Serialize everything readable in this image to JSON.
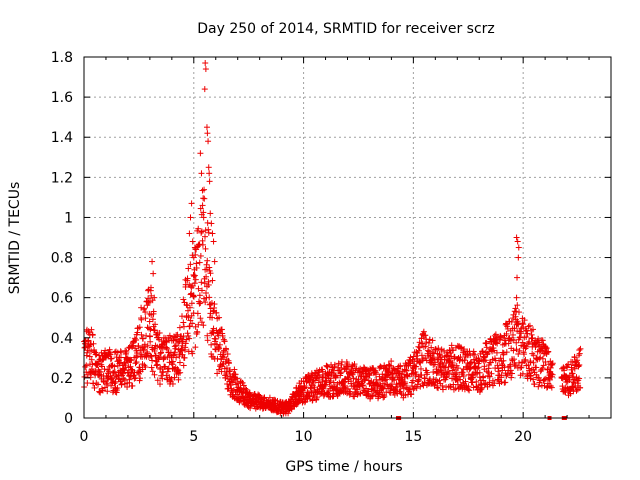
{
  "chart_data": {
    "type": "scatter",
    "title": "Day 250 of 2014, SRMTID for receiver scrz",
    "xlabel": "GPS time / hours",
    "ylabel": "SRMTID / TECUs",
    "xlim": [
      0,
      24
    ],
    "ylim": [
      0,
      1.8
    ],
    "xticks": [
      0,
      5,
      10,
      15,
      20
    ],
    "yticks": [
      0,
      0.2,
      0.4,
      0.6,
      0.8,
      1,
      1.2,
      1.4,
      1.6,
      1.8
    ],
    "xtick_labels": [
      "0",
      "5",
      "10",
      "15",
      "20"
    ],
    "ytick_labels": [
      "0",
      "0.2",
      "0.4",
      "0.6",
      "0.8",
      "1",
      "1.2",
      "1.4",
      "1.6",
      "1.8"
    ],
    "grid": true,
    "marker": "+",
    "color": "#ee0000",
    "envelope": [
      [
        0.0,
        0.28
      ],
      [
        0.3,
        0.33
      ],
      [
        0.6,
        0.22
      ],
      [
        1.0,
        0.24
      ],
      [
        1.5,
        0.23
      ],
      [
        2.0,
        0.24
      ],
      [
        2.5,
        0.32
      ],
      [
        2.8,
        0.4
      ],
      [
        3.0,
        0.48
      ],
      [
        3.2,
        0.38
      ],
      [
        3.5,
        0.28
      ],
      [
        4.0,
        0.3
      ],
      [
        4.3,
        0.33
      ],
      [
        4.6,
        0.48
      ],
      [
        5.0,
        0.6
      ],
      [
        5.3,
        0.72
      ],
      [
        5.5,
        0.85
      ],
      [
        5.8,
        0.5
      ],
      [
        6.0,
        0.42
      ],
      [
        6.3,
        0.3
      ],
      [
        6.6,
        0.2
      ],
      [
        7.0,
        0.15
      ],
      [
        7.5,
        0.09
      ],
      [
        8.0,
        0.08
      ],
      [
        8.5,
        0.07
      ],
      [
        9.0,
        0.05
      ],
      [
        9.3,
        0.05
      ],
      [
        9.6,
        0.1
      ],
      [
        10.0,
        0.14
      ],
      [
        10.5,
        0.16
      ],
      [
        11.0,
        0.18
      ],
      [
        11.5,
        0.19
      ],
      [
        12.0,
        0.2
      ],
      [
        12.5,
        0.18
      ],
      [
        13.0,
        0.17
      ],
      [
        13.5,
        0.18
      ],
      [
        14.0,
        0.2
      ],
      [
        14.5,
        0.18
      ],
      [
        15.0,
        0.22
      ],
      [
        15.5,
        0.3
      ],
      [
        16.0,
        0.26
      ],
      [
        16.5,
        0.25
      ],
      [
        17.0,
        0.26
      ],
      [
        17.5,
        0.24
      ],
      [
        18.0,
        0.23
      ],
      [
        18.5,
        0.28
      ],
      [
        19.0,
        0.3
      ],
      [
        19.5,
        0.36
      ],
      [
        19.8,
        0.4
      ],
      [
        20.0,
        0.35
      ],
      [
        20.3,
        0.34
      ],
      [
        20.6,
        0.28
      ],
      [
        21.0,
        0.28
      ],
      [
        21.3,
        0.22
      ],
      [
        21.6,
        0.18
      ],
      [
        22.0,
        0.18
      ],
      [
        22.3,
        0.22
      ],
      [
        22.6,
        0.26
      ]
    ],
    "gaps": [
      [
        21.35,
        21.75
      ]
    ],
    "spikes": [
      [
        3.1,
        0.78
      ],
      [
        3.15,
        0.72
      ],
      [
        3.05,
        0.65
      ],
      [
        3.2,
        0.6
      ],
      [
        3.0,
        0.58
      ],
      [
        2.6,
        0.55
      ],
      [
        4.8,
        0.92
      ],
      [
        4.85,
        1.0
      ],
      [
        4.9,
        1.07
      ],
      [
        4.95,
        0.88
      ],
      [
        5.0,
        0.8
      ],
      [
        5.05,
        0.85
      ],
      [
        5.3,
        1.32
      ],
      [
        5.35,
        1.22
      ],
      [
        5.4,
        1.06
      ],
      [
        5.45,
        1.0
      ],
      [
        5.5,
        1.64
      ],
      [
        5.52,
        1.77
      ],
      [
        5.55,
        1.74
      ],
      [
        5.6,
        1.45
      ],
      [
        5.62,
        1.42
      ],
      [
        5.65,
        1.38
      ],
      [
        5.68,
        1.25
      ],
      [
        5.7,
        1.22
      ],
      [
        5.72,
        1.18
      ],
      [
        5.75,
        1.02
      ],
      [
        5.8,
        0.97
      ],
      [
        5.85,
        0.92
      ],
      [
        5.9,
        0.88
      ],
      [
        5.95,
        0.78
      ],
      [
        19.7,
        0.9
      ],
      [
        19.75,
        0.88
      ],
      [
        19.8,
        0.85
      ],
      [
        19.78,
        0.8
      ],
      [
        19.72,
        0.7
      ],
      [
        19.7,
        0.6
      ]
    ],
    "baseline_markers": [
      14.3,
      14.35,
      21.2,
      21.85,
      21.9
    ]
  }
}
